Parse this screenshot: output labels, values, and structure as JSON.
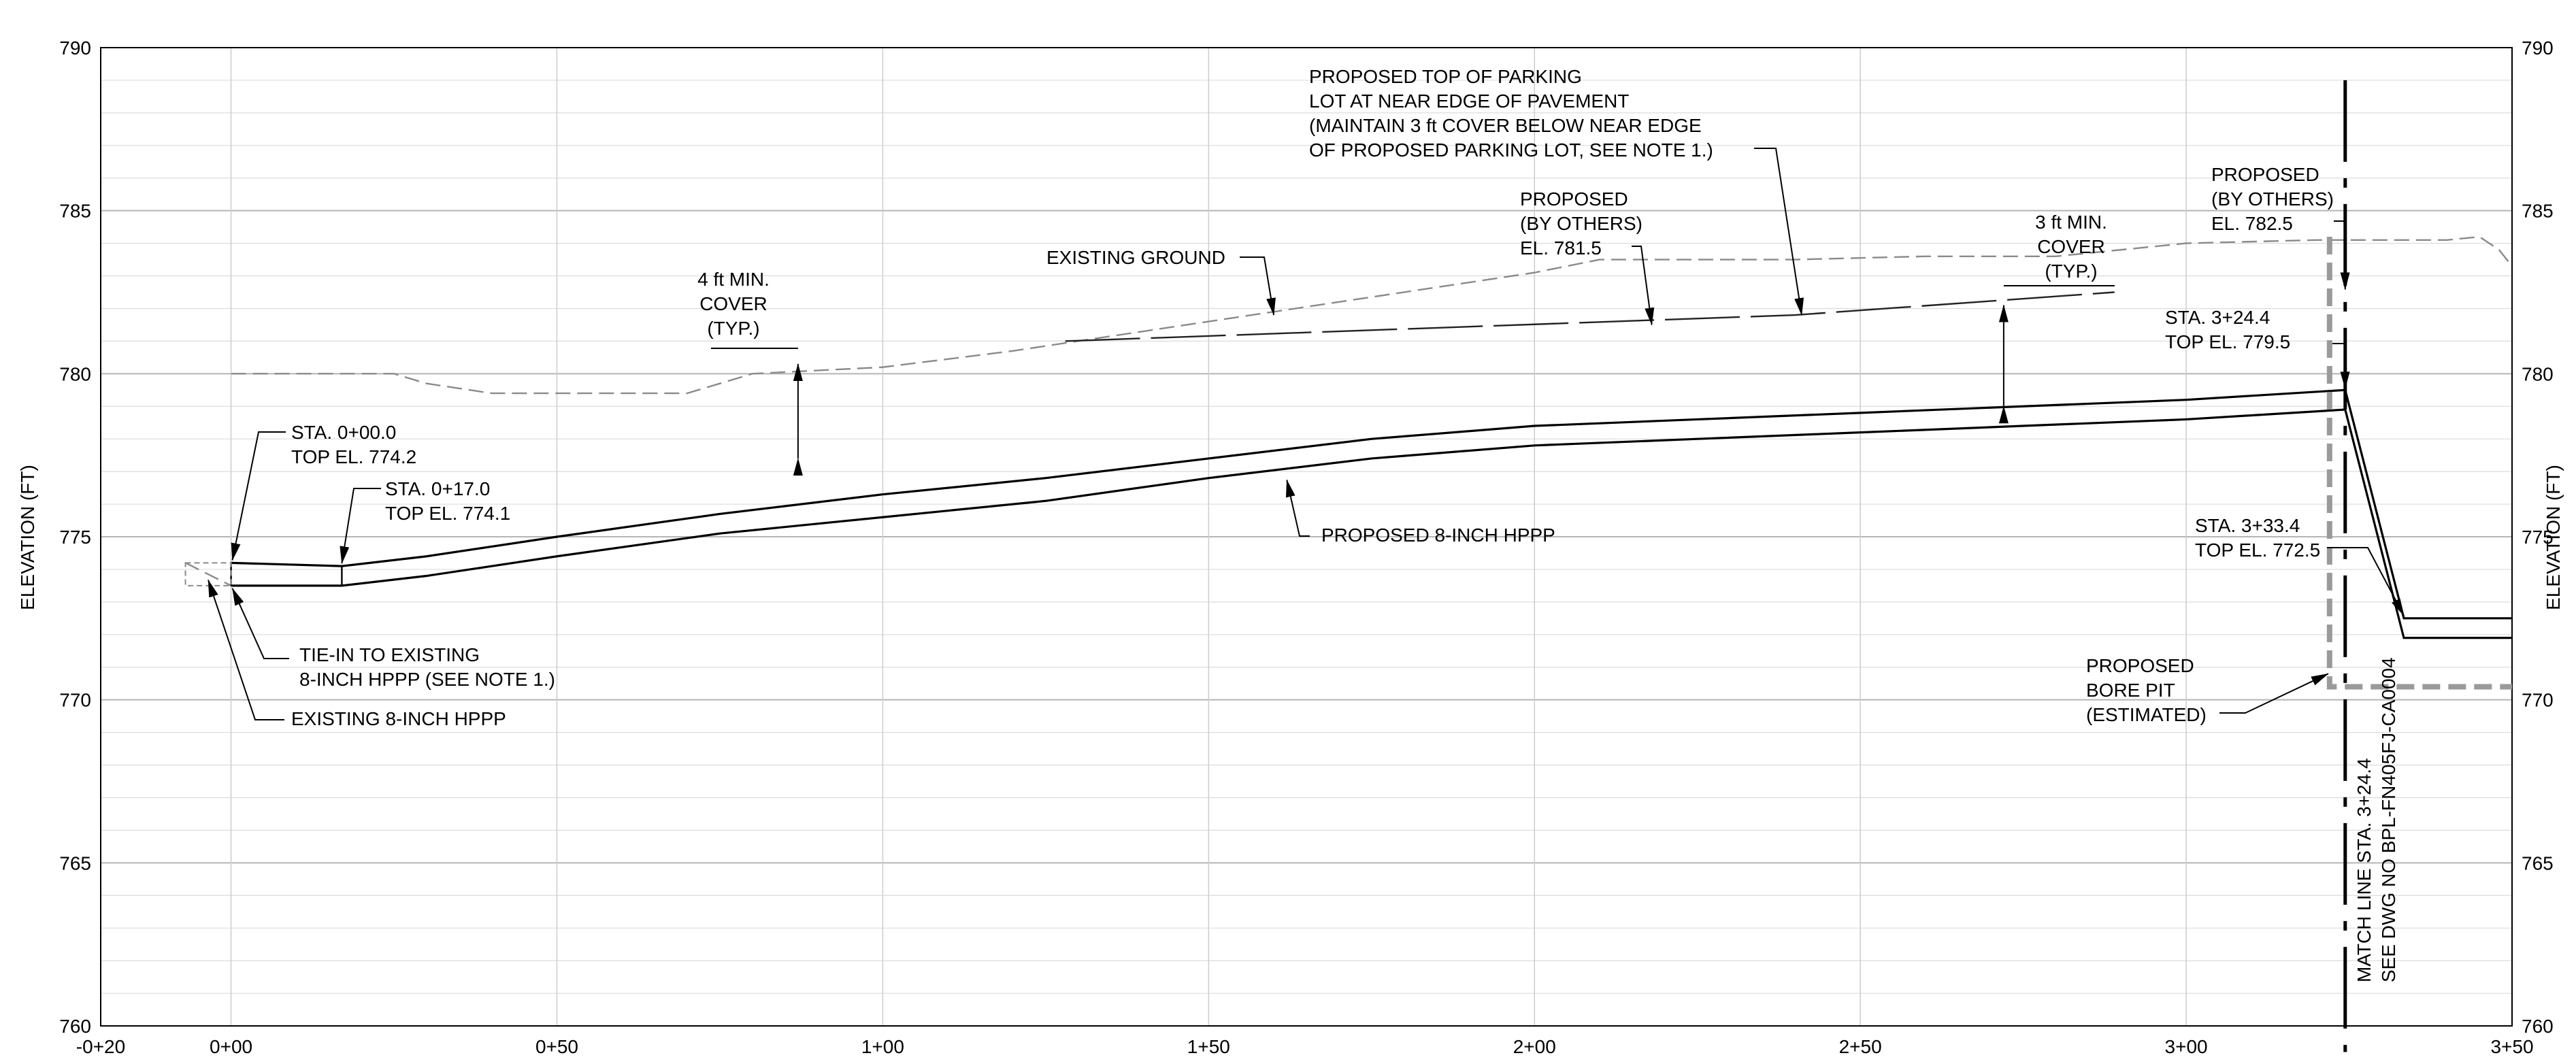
{
  "axes": {
    "y_title_left": "ELEVATION (FT)",
    "y_title_right": "ELEVATION (FT)",
    "y_min": 760,
    "y_max": 790,
    "x_min": -20,
    "x_max": 350,
    "y_ticks": [
      {
        "value": 760,
        "label": "760"
      },
      {
        "value": 765,
        "label": "765"
      },
      {
        "value": 770,
        "label": "770"
      },
      {
        "value": 775,
        "label": "775"
      },
      {
        "value": 780,
        "label": "780"
      },
      {
        "value": 785,
        "label": "785"
      },
      {
        "value": 790,
        "label": "790"
      }
    ],
    "x_ticks": [
      {
        "value": -20,
        "label": "-0+20"
      },
      {
        "value": 0,
        "label": "0+00"
      },
      {
        "value": 50,
        "label": "0+50"
      },
      {
        "value": 100,
        "label": "1+00"
      },
      {
        "value": 150,
        "label": "1+50"
      },
      {
        "value": 200,
        "label": "2+00"
      },
      {
        "value": 250,
        "label": "2+50"
      },
      {
        "value": 300,
        "label": "3+00"
      },
      {
        "value": 350,
        "label": "3+50"
      }
    ],
    "minor_grid_ft": 1,
    "major_grid_ft": 5,
    "vertical_grid_ft": 50
  },
  "chart_data": {
    "type": "line",
    "title": "",
    "xlabel": "",
    "ylabel": "ELEVATION (FT)",
    "xlim": [
      -20,
      350
    ],
    "ylim": [
      760,
      790
    ],
    "grid": true,
    "series": [
      {
        "name": "EXISTING GROUND",
        "style": "dashed-gray",
        "x": [
          0,
          25,
          30,
          40,
          50,
          60,
          70,
          80,
          100,
          120,
          140,
          160,
          180,
          200,
          210,
          220,
          240,
          260,
          280,
          300,
          320,
          340,
          345,
          348,
          350
        ],
        "y": [
          780.0,
          780.0,
          779.7,
          779.4,
          779.4,
          779.4,
          779.4,
          780.0,
          780.2,
          780.7,
          781.3,
          781.9,
          782.5,
          783.1,
          783.5,
          783.5,
          783.5,
          783.6,
          783.6,
          784.0,
          784.1,
          784.1,
          784.2,
          783.8,
          783.3
        ]
      },
      {
        "name": "PROPOSED 8-INCH HPPP (TOP)",
        "style": "solid",
        "x": [
          0,
          17,
          30,
          50,
          75,
          100,
          125,
          150,
          175,
          200,
          225,
          250,
          275,
          300,
          324.4,
          333.4,
          350
        ],
        "y": [
          774.2,
          774.1,
          774.4,
          775.0,
          775.7,
          776.3,
          776.8,
          777.4,
          778.0,
          778.4,
          778.6,
          778.8,
          779.0,
          779.2,
          779.5,
          772.5,
          772.5
        ]
      },
      {
        "name": "PROPOSED 8-INCH HPPP (BOTTOM)",
        "style": "solid",
        "x": [
          0,
          17,
          30,
          50,
          75,
          100,
          125,
          150,
          175,
          200,
          225,
          250,
          275,
          300,
          324.4,
          333.4,
          350
        ],
        "y": [
          773.5,
          773.5,
          773.8,
          774.4,
          775.1,
          775.6,
          776.1,
          776.8,
          777.4,
          777.8,
          778.0,
          778.2,
          778.4,
          778.6,
          778.9,
          771.9,
          771.9
        ]
      },
      {
        "name": "PROPOSED TOP OF PARKING LOT",
        "style": "long-dash",
        "x": [
          128,
          240,
          289
        ],
        "y": [
          781.0,
          781.8,
          782.5
        ]
      },
      {
        "name": "EXISTING 8-INCH HPPP",
        "style": "dashed-gray",
        "x": [
          -7,
          0
        ],
        "y": [
          774.2,
          773.5
        ]
      },
      {
        "name": "PROPOSED BORE PIT (ESTIMATED)",
        "style": "dashed-gray-thick",
        "x": [
          322,
          322,
          350
        ],
        "y": [
          784.2,
          770.4,
          770.4
        ]
      }
    ],
    "annotations": [
      {
        "id": "sta0",
        "lines": [
          "STA. 0+00.0",
          "TOP EL. 774.2"
        ]
      },
      {
        "id": "sta17",
        "lines": [
          "STA. 0+17.0",
          "TOP EL. 774.1"
        ]
      },
      {
        "id": "tiein",
        "lines": [
          "TIE-IN TO EXISTING",
          "8-INCH HPPP (SEE NOTE 1.)"
        ]
      },
      {
        "id": "exhppp",
        "lines": [
          "EXISTING 8-INCH HPPP"
        ]
      },
      {
        "id": "cover4",
        "lines": [
          "4 ft MIN.",
          "COVER",
          "(TYP.)"
        ]
      },
      {
        "id": "exground",
        "lines": [
          "EXISTING GROUND"
        ]
      },
      {
        "id": "proppipe",
        "lines": [
          "PROPOSED 8-INCH HPPP"
        ]
      },
      {
        "id": "propothers1",
        "lines": [
          "PROPOSED",
          "(BY OTHERS)",
          "EL. 781.5"
        ]
      },
      {
        "id": "parking",
        "lines": [
          "PROPOSED TOP OF PARKING",
          "LOT AT NEAR EDGE OF PAVEMENT",
          "(MAINTAIN 3 ft COVER BELOW NEAR EDGE",
          "OF PROPOSED PARKING LOT, SEE NOTE 1.)"
        ]
      },
      {
        "id": "cover3",
        "lines": [
          "3 ft MIN.",
          "COVER",
          "(TYP.)"
        ]
      },
      {
        "id": "propothers2",
        "lines": [
          "PROPOSED",
          "(BY OTHERS)",
          "EL. 782.5"
        ]
      },
      {
        "id": "sta324",
        "lines": [
          "STA. 3+24.4",
          "TOP EL. 779.5"
        ]
      },
      {
        "id": "sta333",
        "lines": [
          "STA. 3+33.4",
          "TOP EL. 772.5"
        ]
      },
      {
        "id": "borepit",
        "lines": [
          "PROPOSED",
          "BORE PIT",
          "(ESTIMATED)"
        ]
      },
      {
        "id": "matchline",
        "lines": [
          "MATCH LINE STA. 3+24.4",
          "SEE DWG NO BPL-FN405FJ-CA0004"
        ]
      }
    ]
  }
}
